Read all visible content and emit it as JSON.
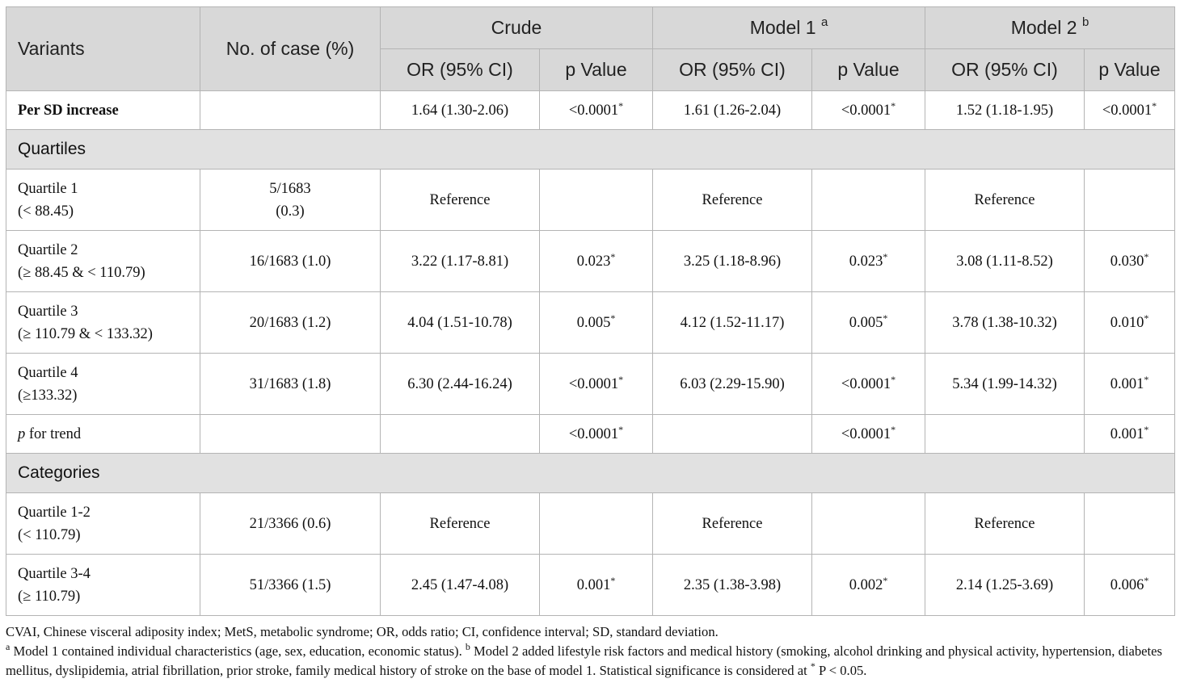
{
  "header": {
    "variants": "Variants",
    "no_of_case": "No. of case (%)",
    "groups": [
      {
        "label": "Crude",
        "sup": ""
      },
      {
        "label": "Model 1",
        "sup": "a"
      },
      {
        "label": "Model 2",
        "sup": "b"
      }
    ],
    "or_label": "OR (95% CI)",
    "p_label": "p Value"
  },
  "rows": {
    "per_sd": {
      "label": "Per SD increase",
      "cases": "",
      "crude_or": "1.64 (1.30-2.06)",
      "crude_p": "<0.0001",
      "crude_sig": "*",
      "m1_or": "1.61 (1.26-2.04)",
      "m1_p": "<0.0001",
      "m1_sig": "*",
      "m2_or": "1.52 (1.18-1.95)",
      "m2_p": "<0.0001",
      "m2_sig": "*"
    },
    "quartiles_section": "Quartiles",
    "q1": {
      "label": "Quartile 1",
      "range": "(< 88.45)",
      "cases_line1": "5/1683",
      "cases_line2": "(0.3)",
      "crude_or": "Reference",
      "m1_or": "Reference",
      "m2_or": "Reference"
    },
    "q2": {
      "label": "Quartile 2",
      "range": "(≥ 88.45 & < 110.79)",
      "cases": "16/1683 (1.0)",
      "crude_or": "3.22 (1.17-8.81)",
      "crude_p": "0.023",
      "crude_sig": "*",
      "m1_or": "3.25 (1.18-8.96)",
      "m1_p": "0.023",
      "m1_sig": "*",
      "m2_or": "3.08 (1.11-8.52)",
      "m2_p": "0.030",
      "m2_sig": "*"
    },
    "q3": {
      "label": "Quartile 3",
      "range": "(≥ 110.79 & < 133.32)",
      "cases": "20/1683 (1.2)",
      "crude_or": "4.04 (1.51-10.78)",
      "crude_p": "0.005",
      "crude_sig": "*",
      "m1_or": "4.12 (1.52-11.17)",
      "m1_p": "0.005",
      "m1_sig": "*",
      "m2_or": "3.78 (1.38-10.32)",
      "m2_p": "0.010",
      "m2_sig": "*"
    },
    "q4": {
      "label": "Quartile 4",
      "range": "(≥133.32)",
      "cases": "31/1683 (1.8)",
      "crude_or": "6.30 (2.44-16.24)",
      "crude_p": "<0.0001",
      "crude_sig": "*",
      "m1_or": "6.03 (2.29-15.90)",
      "m1_p": "<0.0001",
      "m1_sig": "*",
      "m2_or": "5.34 (1.99-14.32)",
      "m2_p": "0.001",
      "m2_sig": "*"
    },
    "trend": {
      "label_p": "p",
      "label_rest": " for trend",
      "crude_p": "<0.0001",
      "crude_sig": "*",
      "m1_p": "<0.0001",
      "m1_sig": "*",
      "m2_p": "0.001",
      "m2_sig": "*"
    },
    "categories_section": "Categories",
    "c12": {
      "label": "Quartile 1-2",
      "range": "(< 110.79)",
      "cases": "21/3366 (0.6)",
      "crude_or": "Reference",
      "m1_or": "Reference",
      "m2_or": "Reference"
    },
    "c34": {
      "label": "Quartile 3-4",
      "range": "(≥ 110.79)",
      "cases": "51/3366 (1.5)",
      "crude_or": "2.45 (1.47-4.08)",
      "crude_p": "0.001",
      "crude_sig": "*",
      "m1_or": "2.35 (1.38-3.98)",
      "m1_p": "0.002",
      "m1_sig": "*",
      "m2_or": "2.14 (1.25-3.69)",
      "m2_p": "0.006",
      "m2_sig": "*"
    }
  },
  "notes": {
    "abbrev": "CVAI, Chinese visceral adiposity index; MetS, metabolic syndrome; OR, odds ratio; CI, confidence interval; SD, standard deviation.",
    "a_mark": "a",
    "a_text": " Model 1 contained individual characteristics (age, sex, education, economic status). ",
    "b_mark": "b",
    "b_text": " Model 2 added lifestyle risk factors and medical history (smoking, alcohol drinking and physical activity, hypertension, diabetes mellitus, dyslipidemia, atrial fibrillation, prior stroke, family medical history of stroke on the base of model 1. Statistical significance is considered at ",
    "star_mark": "*",
    "p_end": " P < 0.05."
  }
}
